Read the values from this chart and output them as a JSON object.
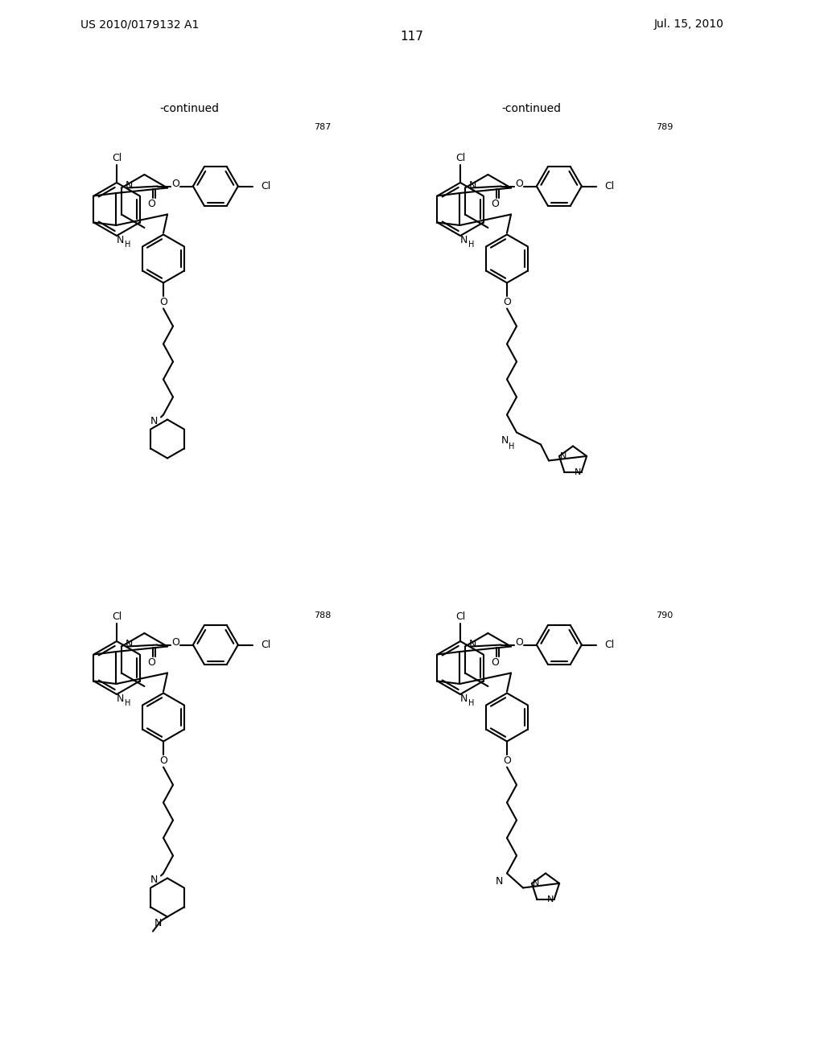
{
  "page_number": "117",
  "patent_number": "US 2010/0179132 A1",
  "date": "Jul. 15, 2010",
  "continued_label": "-continued",
  "compound_numbers": [
    "787",
    "789",
    "788",
    "790"
  ],
  "background_color": "#ffffff",
  "text_color": "#000000"
}
